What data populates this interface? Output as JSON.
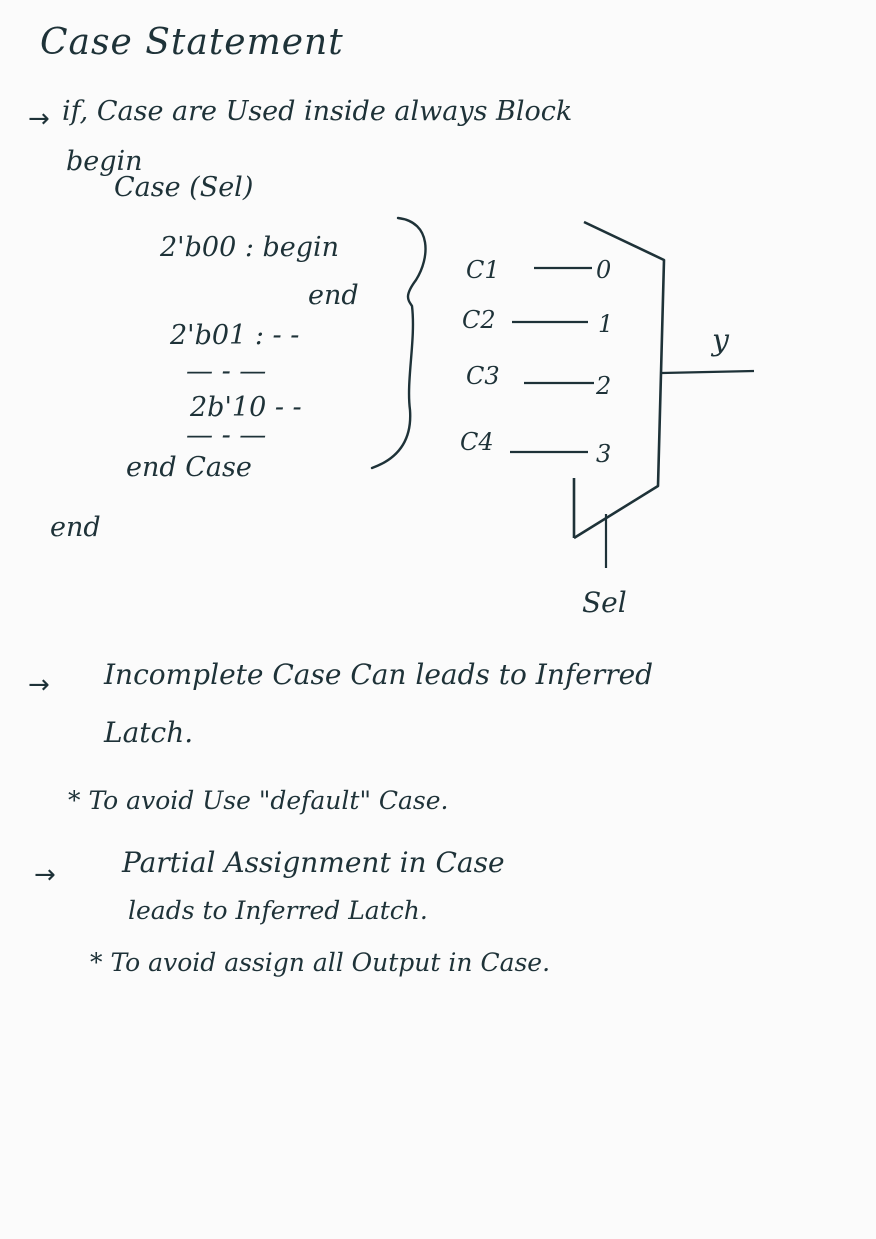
{
  "title": "Case Statement",
  "arrow_symbol": "→",
  "intro": "if, Case are Used inside always Block",
  "code": {
    "begin": "begin",
    "case_header": "Case (Sel)",
    "line1": "2'b00 : begin",
    "line1_end": "end",
    "line2": "2'b01 : - -",
    "dashes_a": "— - —",
    "line3": "2b'10 - -",
    "dashes_b": "— - —",
    "endcase": "end Case",
    "end": "end"
  },
  "diagram": {
    "inputs": [
      "C1",
      "C2",
      "C3",
      "C4"
    ],
    "ports": [
      "0",
      "1",
      "2",
      "3"
    ],
    "output": "y",
    "select": "Sel"
  },
  "notes": {
    "note1_line1": "Incomplete Case Can leads to Inferred",
    "note1_line2": "Latch.",
    "tip1": "* To avoid Use \"default\" Case.",
    "note2_line1": "Partial Assignment in Case",
    "note2_line2": "leads to Inferred Latch.",
    "tip2": "* To avoid assign all Output in Case."
  }
}
